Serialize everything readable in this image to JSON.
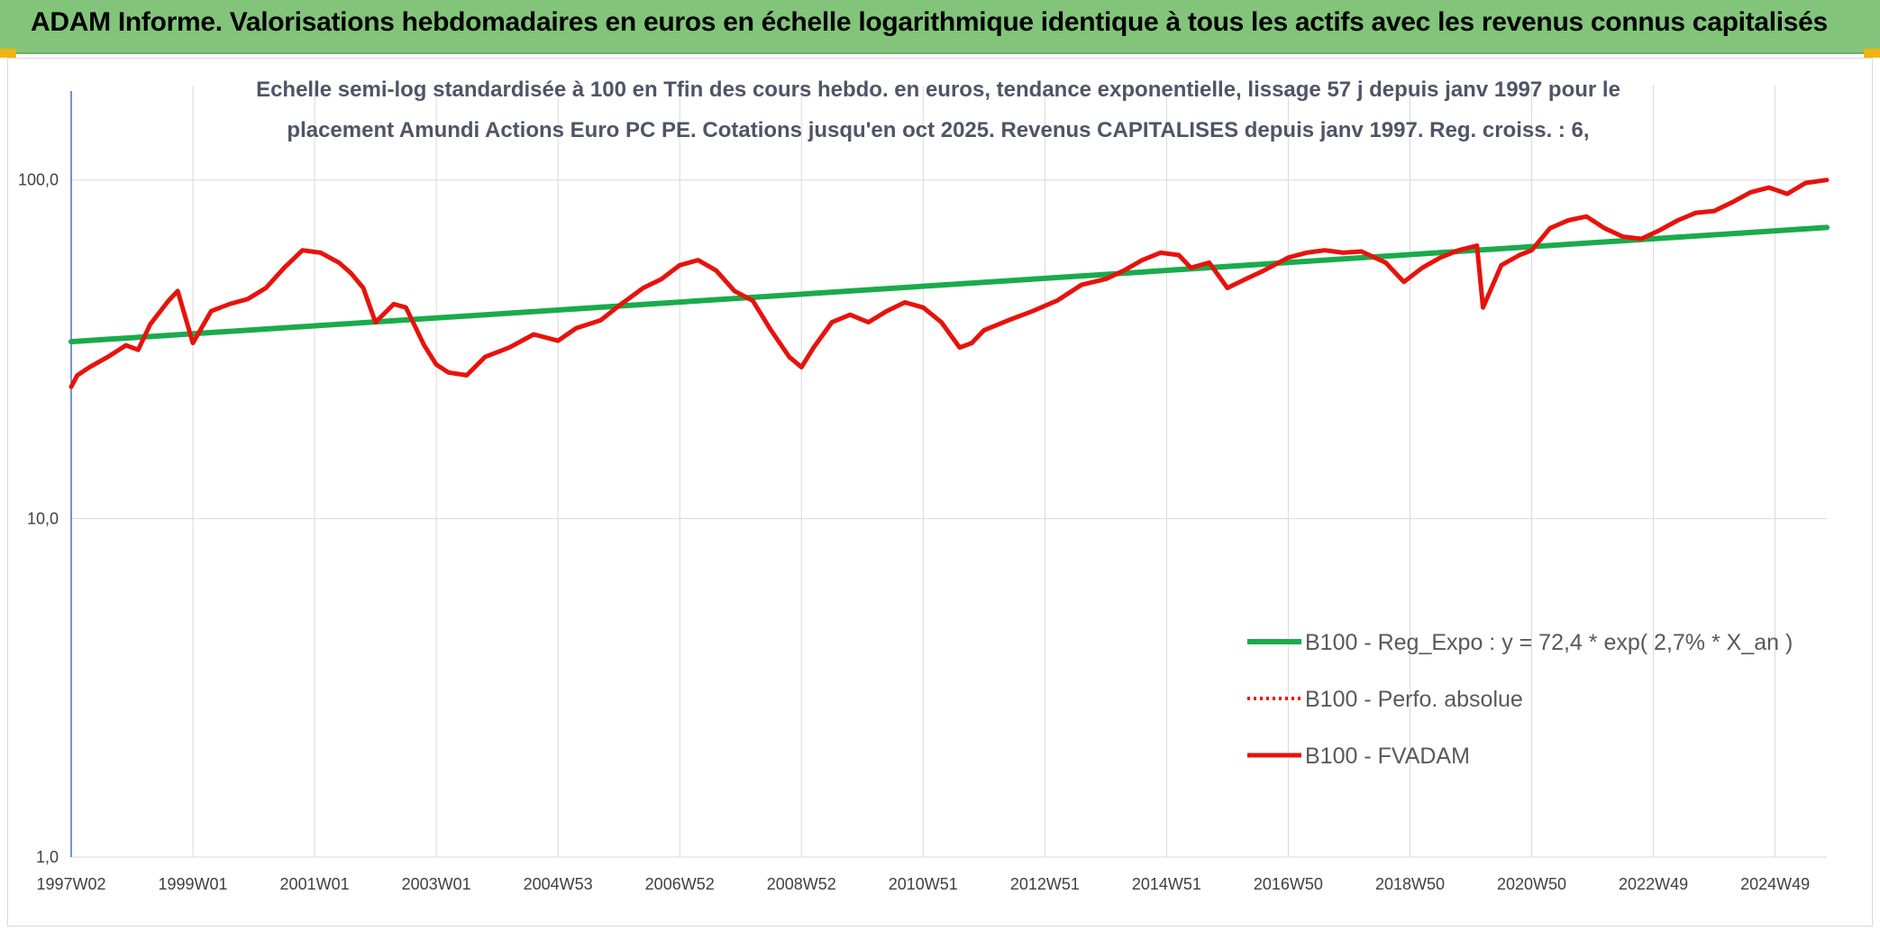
{
  "header": {
    "title": "ADAM Informe. Valorisations hebdomadaires en euros en échelle logarithmique identique à tous les actifs avec les revenus connus capitalisés"
  },
  "colors": {
    "header_bg": "#82c57a",
    "corner_accent": "#f1b512",
    "regression_line": "#1aab4b",
    "fvadam_line": "#e8120c",
    "perfo_line": "#e8120c",
    "gridline": "#d9d9d9",
    "axis_line": "#4472c4"
  },
  "chart_data": {
    "type": "line",
    "title_lines": [
      "Echelle semi-log standardisée à 100 en Tfin des cours hebdo. en euros, tendance exponentielle, lissage 57 j depuis janv 1997 pour le",
      "placement Amundi Actions Euro PC PE. Cotations jusqu'en oct 2025. Revenus CAPITALISES depuis janv 1997. Reg. croiss. : 6,"
    ],
    "y_scale": "log",
    "ylim": [
      1,
      190
    ],
    "y_ticks": [
      {
        "value": 1,
        "label": "1,0"
      },
      {
        "value": 10,
        "label": "10,0"
      },
      {
        "value": 100,
        "label": "100,0"
      }
    ],
    "xlim": [
      1997.0,
      2025.85
    ],
    "x_ticks": [
      {
        "value": 1997.0,
        "label": "1997W02"
      },
      {
        "value": 1999.0,
        "label": "1999W01"
      },
      {
        "value": 2001.0,
        "label": "2001W01"
      },
      {
        "value": 2003.0,
        "label": "2003W01"
      },
      {
        "value": 2005.0,
        "label": "2004W53"
      },
      {
        "value": 2007.0,
        "label": "2006W52"
      },
      {
        "value": 2009.0,
        "label": "2008W52"
      },
      {
        "value": 2011.0,
        "label": "2010W51"
      },
      {
        "value": 2013.0,
        "label": "2012W51"
      },
      {
        "value": 2015.0,
        "label": "2014W51"
      },
      {
        "value": 2017.0,
        "label": "2016W50"
      },
      {
        "value": 2019.0,
        "label": "2018W50"
      },
      {
        "value": 2021.0,
        "label": "2020W50"
      },
      {
        "value": 2023.0,
        "label": "2022W49"
      },
      {
        "value": 2025.0,
        "label": "2024W49"
      }
    ],
    "grid": true,
    "legend_position": "right",
    "series": [
      {
        "name": "B100 - Reg_Expo : y = 72,4 * exp( 2,7% *  X_an )",
        "style": "solid",
        "x": [
          1997.0,
          2025.85
        ],
        "y": [
          33.3,
          72.4
        ]
      },
      {
        "name": "B100 - Perfo. absolue",
        "style": "dotted",
        "x": [],
        "y": []
      },
      {
        "name": "B100 - FVADAM",
        "style": "solid",
        "x": [
          1997.0,
          1997.1,
          1997.3,
          1997.6,
          1997.9,
          1998.1,
          1998.3,
          1998.6,
          1998.75,
          1998.9,
          1999.0,
          1999.3,
          1999.6,
          1999.9,
          2000.2,
          2000.5,
          2000.8,
          2001.1,
          2001.4,
          2001.6,
          2001.8,
          2002.0,
          2002.3,
          2002.5,
          2002.8,
          2003.0,
          2003.2,
          2003.5,
          2003.8,
          2004.2,
          2004.6,
          2005.0,
          2005.3,
          2005.7,
          2006.0,
          2006.4,
          2006.7,
          2007.0,
          2007.3,
          2007.6,
          2007.9,
          2008.2,
          2008.5,
          2008.8,
          2009.0,
          2009.2,
          2009.5,
          2009.8,
          2010.1,
          2010.4,
          2010.7,
          2011.0,
          2011.3,
          2011.6,
          2011.8,
          2012.0,
          2012.4,
          2012.8,
          2013.2,
          2013.6,
          2014.0,
          2014.3,
          2014.6,
          2014.9,
          2015.2,
          2015.4,
          2015.7,
          2016.0,
          2016.3,
          2016.6,
          2017.0,
          2017.3,
          2017.6,
          2017.9,
          2018.2,
          2018.6,
          2018.9,
          2019.2,
          2019.5,
          2019.8,
          2020.1,
          2020.2,
          2020.5,
          2020.8,
          2021.0,
          2021.3,
          2021.6,
          2021.9,
          2022.2,
          2022.5,
          2022.8,
          2023.1,
          2023.4,
          2023.7,
          2024.0,
          2024.3,
          2024.6,
          2024.9,
          2025.2,
          2025.5,
          2025.85
        ],
        "y": [
          24.5,
          26.5,
          28.0,
          30.0,
          32.5,
          31.5,
          37.5,
          44.0,
          47.0,
          38.0,
          33.0,
          41.0,
          43.0,
          44.5,
          48.0,
          55.0,
          62.0,
          61.0,
          57.0,
          53.0,
          48.0,
          38.0,
          43.0,
          42.0,
          32.5,
          28.5,
          27.0,
          26.5,
          30.0,
          32.0,
          35.0,
          33.5,
          36.5,
          38.5,
          42.5,
          48.0,
          51.0,
          56.0,
          58.0,
          54.0,
          47.0,
          44.0,
          36.0,
          30.0,
          28.0,
          32.0,
          38.0,
          40.0,
          38.0,
          41.0,
          43.5,
          42.0,
          38.0,
          32.0,
          33.0,
          36.0,
          38.5,
          41.0,
          44.0,
          49.0,
          51.0,
          54.0,
          58.0,
          61.0,
          60.0,
          55.0,
          57.0,
          48.0,
          51.0,
          54.0,
          59.0,
          61.0,
          62.0,
          61.0,
          61.5,
          57.0,
          50.0,
          55.0,
          59.0,
          62.0,
          64.0,
          42.0,
          56.0,
          60.0,
          62.0,
          72.0,
          76.0,
          78.0,
          72.0,
          68.0,
          67.0,
          71.0,
          76.0,
          80.0,
          81.0,
          86.0,
          92.0,
          95.0,
          91.0,
          98.0,
          100.0
        ]
      }
    ]
  }
}
